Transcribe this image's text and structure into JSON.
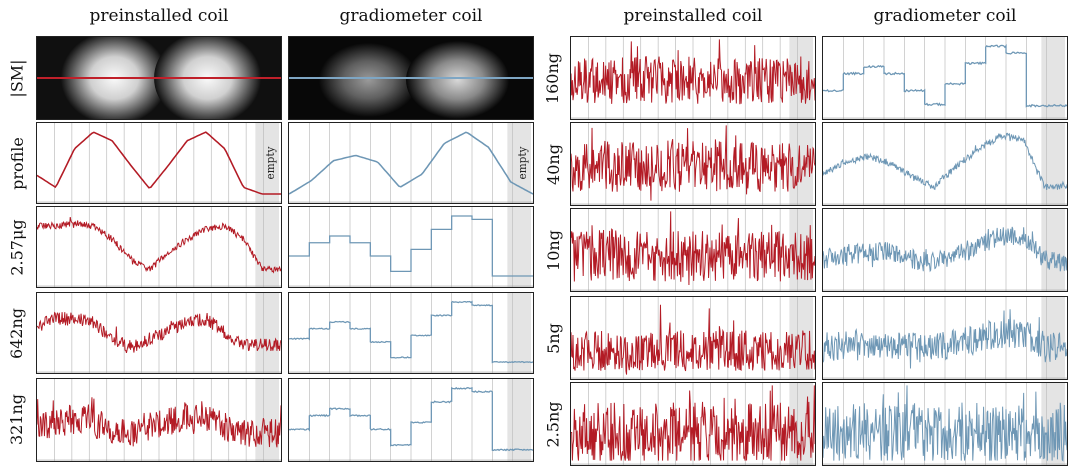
{
  "colors": {
    "preinstalled": "#b31b25",
    "gradiometer": "#6e97b5",
    "grid": "#bdbdbd",
    "empty_band": "#e4e4e4",
    "red_line": "#c0202a",
    "blue_line": "#7ea6c4"
  },
  "left_block": {
    "titles": [
      "preinstalled coil",
      "gradiometer coil"
    ],
    "rows": [
      "|SM|",
      "profile",
      "2.57μg",
      "642ng",
      "321ng"
    ],
    "empty_label": "empty"
  },
  "right_block": {
    "titles": [
      "preinstalled coil",
      "gradiometer coil"
    ],
    "rows": [
      "160ng",
      "40ng",
      "10ng",
      "5ng",
      "2.5ng"
    ]
  },
  "chart_data": [
    {
      "type": "line",
      "block": "left",
      "row": "profile",
      "coil": "preinstalled coil",
      "series": [
        {
          "values": [
            0.3,
            0.12,
            0.7,
            0.95,
            0.82,
            0.45,
            0.1,
            0.45,
            0.82,
            0.95,
            0.7,
            0.12,
            0.02,
            0.02
          ]
        }
      ]
    },
    {
      "type": "line",
      "block": "left",
      "row": "profile",
      "coil": "gradiometer coil",
      "series": [
        {
          "values": [
            0.02,
            0.22,
            0.52,
            0.6,
            0.5,
            0.12,
            0.32,
            0.78,
            0.95,
            0.72,
            0.2,
            0.02
          ]
        }
      ]
    },
    {
      "type": "line",
      "block": "left",
      "row": "2.57μg",
      "coil": "preinstalled coil",
      "series": [
        {
          "values": [
            0.8,
            0.8,
            0.85,
            0.8,
            0.6,
            0.3,
            0.15,
            0.4,
            0.6,
            0.75,
            0.8,
            0.6,
            0.15,
            0.15
          ]
        }
      ]
    },
    {
      "type": "line",
      "block": "left",
      "row": "2.57μg",
      "coil": "gradiometer coil",
      "series": [
        {
          "values": [
            0.35,
            0.55,
            0.65,
            0.55,
            0.35,
            0.12,
            0.45,
            0.75,
            0.95,
            0.9,
            0.05,
            0.05
          ]
        }
      ]
    },
    {
      "type": "line",
      "block": "left",
      "row": "642ng",
      "coil": "preinstalled coil",
      "series": [
        {
          "values": [
            0.6,
            0.7,
            0.7,
            0.65,
            0.4,
            0.25,
            0.4,
            0.5,
            0.65,
            0.7,
            0.5,
            0.3,
            0.3,
            0.3
          ]
        }
      ]
    },
    {
      "type": "line",
      "block": "left",
      "row": "642ng",
      "coil": "gradiometer coil",
      "series": [
        {
          "values": [
            0.4,
            0.55,
            0.65,
            0.55,
            0.35,
            0.12,
            0.45,
            0.75,
            0.95,
            0.9,
            0.05,
            0.05
          ]
        }
      ]
    },
    {
      "type": "line",
      "block": "left",
      "row": "321ng",
      "coil": "preinstalled coil",
      "series": [
        {
          "values": [
            0.4,
            0.45,
            0.5,
            0.45,
            0.35,
            0.3,
            0.4,
            0.45,
            0.55,
            0.55,
            0.4,
            0.3,
            0.3,
            0.3
          ]
        }
      ]
    },
    {
      "type": "line",
      "block": "left",
      "row": "321ng",
      "coil": "gradiometer coil",
      "series": [
        {
          "values": [
            0.35,
            0.55,
            0.65,
            0.55,
            0.35,
            0.12,
            0.45,
            0.75,
            0.95,
            0.9,
            0.05,
            0.05
          ]
        }
      ]
    },
    {
      "type": "line",
      "block": "right",
      "row": "160ng",
      "coil": "preinstalled coil",
      "series": [
        {
          "values": [
            0.45,
            0.45,
            0.45,
            0.45,
            0.45,
            0.45,
            0.45,
            0.45,
            0.45,
            0.45,
            0.45,
            0.45,
            0.45,
            0.45
          ]
        }
      ]
    },
    {
      "type": "line",
      "block": "right",
      "row": "160ng",
      "coil": "gradiometer coil",
      "series": [
        {
          "values": [
            0.3,
            0.55,
            0.65,
            0.55,
            0.3,
            0.1,
            0.4,
            0.7,
            0.95,
            0.85,
            0.08,
            0.08
          ]
        }
      ]
    },
    {
      "type": "line",
      "block": "right",
      "row": "40ng",
      "coil": "preinstalled coil",
      "series": [
        {
          "values": [
            0.45,
            0.45,
            0.45,
            0.45,
            0.45,
            0.45,
            0.45,
            0.45,
            0.45,
            0.45,
            0.45,
            0.45,
            0.45,
            0.45
          ]
        }
      ]
    },
    {
      "type": "line",
      "block": "right",
      "row": "40ng",
      "coil": "gradiometer coil",
      "series": [
        {
          "values": [
            0.35,
            0.5,
            0.6,
            0.5,
            0.3,
            0.15,
            0.45,
            0.7,
            0.9,
            0.85,
            0.15,
            0.15
          ]
        }
      ]
    },
    {
      "type": "line",
      "block": "right",
      "row": "10ng",
      "coil": "preinstalled coil",
      "series": [
        {
          "values": [
            0.4,
            0.4,
            0.4,
            0.4,
            0.4,
            0.4,
            0.4,
            0.4,
            0.4,
            0.4,
            0.4,
            0.4,
            0.4,
            0.4
          ]
        }
      ]
    },
    {
      "type": "line",
      "block": "right",
      "row": "10ng",
      "coil": "gradiometer coil",
      "series": [
        {
          "values": [
            0.35,
            0.4,
            0.45,
            0.45,
            0.35,
            0.3,
            0.4,
            0.55,
            0.7,
            0.7,
            0.35,
            0.25
          ]
        }
      ]
    },
    {
      "type": "line",
      "block": "right",
      "row": "5ng",
      "coil": "preinstalled coil",
      "series": [
        {
          "values": [
            0.3,
            0.3,
            0.3,
            0.3,
            0.3,
            0.3,
            0.3,
            0.3,
            0.3,
            0.3,
            0.3,
            0.3,
            0.3,
            0.3
          ]
        }
      ]
    },
    {
      "type": "line",
      "block": "right",
      "row": "5ng",
      "coil": "gradiometer coil",
      "series": [
        {
          "values": [
            0.35,
            0.38,
            0.4,
            0.38,
            0.35,
            0.35,
            0.4,
            0.48,
            0.55,
            0.55,
            0.35,
            0.35
          ]
        }
      ]
    },
    {
      "type": "line",
      "block": "right",
      "row": "2.5ng",
      "coil": "preinstalled coil",
      "series": [
        {
          "values": [
            0.35,
            0.35,
            0.35,
            0.35,
            0.35,
            0.35,
            0.35,
            0.35,
            0.35,
            0.35,
            0.35,
            0.35,
            0.35,
            0.35
          ]
        }
      ]
    },
    {
      "type": "line",
      "block": "right",
      "row": "2.5ng",
      "coil": "gradiometer coil",
      "series": [
        {
          "values": [
            0.35,
            0.35,
            0.35,
            0.35,
            0.35,
            0.35,
            0.35,
            0.35,
            0.35,
            0.35,
            0.35,
            0.35,
            0.35,
            0.35
          ]
        }
      ]
    }
  ]
}
